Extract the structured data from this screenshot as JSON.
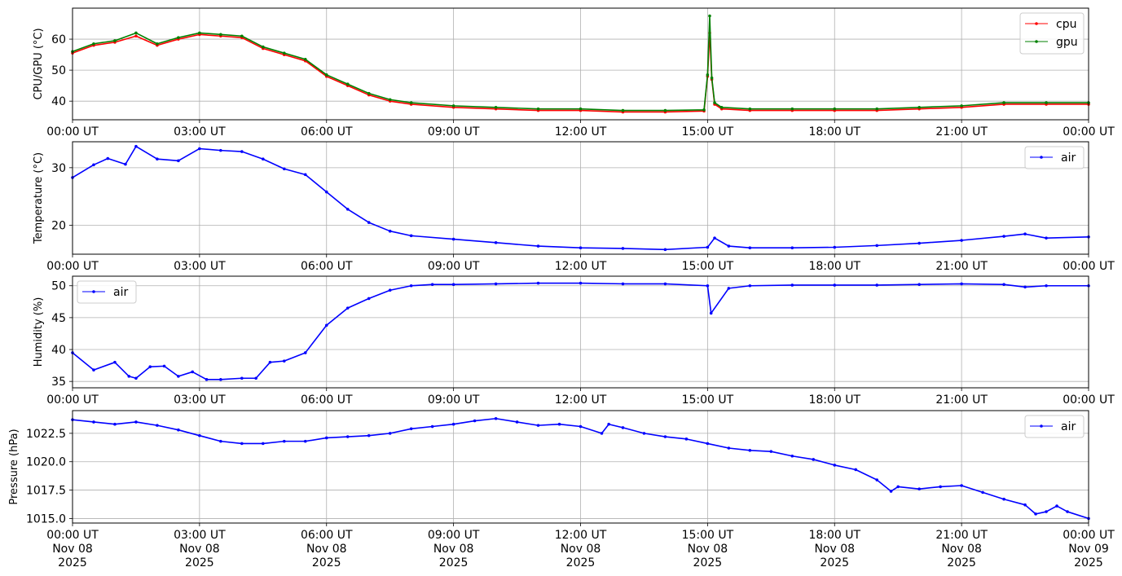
{
  "chart_data": [
    {
      "type": "line",
      "ylabel": "CPU/GPU (°C)",
      "ylim": [
        34,
        70
      ],
      "yticks": [
        40,
        50,
        60
      ],
      "x_ticks": [
        "00:00 UT",
        "03:00 UT",
        "06:00 UT",
        "09:00 UT",
        "12:00 UT",
        "15:00 UT",
        "18:00 UT",
        "21:00 UT",
        "00:00 UT"
      ],
      "x": [
        "00:00",
        "00:30",
        "01:00",
        "01:30",
        "02:00",
        "02:30",
        "03:00",
        "03:30",
        "04:00",
        "04:30",
        "05:00",
        "05:30",
        "06:00",
        "06:30",
        "07:00",
        "07:30",
        "08:00",
        "09:00",
        "10:00",
        "11:00",
        "12:00",
        "13:00",
        "14:00",
        "14:55",
        "15:00",
        "15:03",
        "15:06",
        "15:10",
        "15:20",
        "16:00",
        "17:00",
        "18:00",
        "19:00",
        "20:00",
        "21:00",
        "22:00",
        "23:00",
        "24:00"
      ],
      "series": [
        {
          "name": "cpu",
          "color": "#ff0000",
          "values": [
            55.5,
            58,
            59,
            61,
            58,
            60,
            61.5,
            61,
            60.5,
            57,
            55,
            53,
            48,
            45,
            42,
            40,
            39,
            38,
            37.5,
            37,
            37,
            36.5,
            36.5,
            36.8,
            48,
            62,
            47,
            39,
            37.5,
            37,
            37,
            37,
            37,
            37.5,
            38,
            39,
            39,
            39
          ]
        },
        {
          "name": "gpu",
          "color": "#008000",
          "values": [
            56,
            58.5,
            59.5,
            62,
            58.5,
            60.5,
            62,
            61.5,
            61,
            57.5,
            55.5,
            53.5,
            48.5,
            45.5,
            42.5,
            40.5,
            39.5,
            38.5,
            38,
            37.5,
            37.5,
            37,
            37,
            37.2,
            48.5,
            67.5,
            47.5,
            39.5,
            38,
            37.5,
            37.5,
            37.5,
            37.5,
            38,
            38.5,
            39.5,
            39.5,
            39.5
          ]
        }
      ],
      "legend": "top-right",
      "grid": true
    },
    {
      "type": "line",
      "ylabel": "Temperature (°C)",
      "ylim": [
        15,
        34.5
      ],
      "yticks": [
        20,
        30
      ],
      "x_ticks": [
        "00:00 UT",
        "03:00 UT",
        "06:00 UT",
        "09:00 UT",
        "12:00 UT",
        "15:00 UT",
        "18:00 UT",
        "21:00 UT",
        "00:00 UT"
      ],
      "x": [
        "00:00",
        "00:30",
        "00:50",
        "01:15",
        "01:30",
        "02:00",
        "02:30",
        "03:00",
        "03:30",
        "04:00",
        "04:30",
        "05:00",
        "05:30",
        "06:00",
        "06:30",
        "07:00",
        "07:30",
        "08:00",
        "09:00",
        "10:00",
        "11:00",
        "12:00",
        "13:00",
        "14:00",
        "15:00",
        "15:10",
        "15:30",
        "16:00",
        "17:00",
        "18:00",
        "19:00",
        "20:00",
        "21:00",
        "22:00",
        "22:30",
        "23:00",
        "24:00"
      ],
      "series": [
        {
          "name": "air",
          "color": "#0000ff",
          "values": [
            28.3,
            30.5,
            31.6,
            30.6,
            33.7,
            31.5,
            31.2,
            33.3,
            33.0,
            32.8,
            31.5,
            29.8,
            28.8,
            25.8,
            22.8,
            20.5,
            19.0,
            18.2,
            17.6,
            17.0,
            16.4,
            16.1,
            16.0,
            15.8,
            16.2,
            17.8,
            16.4,
            16.1,
            16.1,
            16.2,
            16.5,
            16.9,
            17.4,
            18.1,
            18.5,
            17.8,
            18.0
          ]
        }
      ],
      "legend": "top-right",
      "grid": true
    },
    {
      "type": "line",
      "ylabel": "Humidity (%)",
      "ylim": [
        34,
        51.5
      ],
      "yticks": [
        35,
        40,
        45,
        50
      ],
      "x_ticks": [
        "00:00 UT",
        "03:00 UT",
        "06:00 UT",
        "09:00 UT",
        "12:00 UT",
        "15:00 UT",
        "18:00 UT",
        "21:00 UT",
        "00:00 UT"
      ],
      "x": [
        "00:00",
        "00:30",
        "01:00",
        "01:20",
        "01:30",
        "01:50",
        "02:10",
        "02:30",
        "02:50",
        "03:10",
        "03:30",
        "04:00",
        "04:20",
        "04:40",
        "05:00",
        "05:30",
        "06:00",
        "06:30",
        "07:00",
        "07:30",
        "08:00",
        "08:30",
        "09:00",
        "10:00",
        "11:00",
        "12:00",
        "13:00",
        "14:00",
        "15:00",
        "15:05",
        "15:30",
        "16:00",
        "17:00",
        "18:00",
        "19:00",
        "20:00",
        "21:00",
        "22:00",
        "22:30",
        "23:00",
        "24:00"
      ],
      "series": [
        {
          "name": "air",
          "color": "#0000ff",
          "values": [
            39.5,
            36.8,
            38.0,
            35.8,
            35.5,
            37.3,
            37.4,
            35.8,
            36.5,
            35.3,
            35.3,
            35.5,
            35.5,
            38.0,
            38.2,
            39.5,
            43.8,
            46.5,
            48.0,
            49.3,
            50.0,
            50.2,
            50.2,
            50.3,
            50.4,
            50.4,
            50.3,
            50.3,
            50.0,
            45.7,
            49.6,
            50.0,
            50.1,
            50.1,
            50.1,
            50.2,
            50.3,
            50.2,
            49.8,
            50.0,
            50.0
          ]
        }
      ],
      "legend": "top-left",
      "grid": true
    },
    {
      "type": "line",
      "ylabel": "Pressure (hPa)",
      "ylim": [
        1014.6,
        1024.5
      ],
      "yticks": [
        1015.0,
        1017.5,
        1020.0,
        1022.5
      ],
      "yticklabels": [
        "1015.0",
        "1017.5",
        "1020.0",
        "1022.5"
      ],
      "x_ticks": [
        "00:00 UT\nNov 08\n2025",
        "03:00 UT\nNov 08\n2025",
        "06:00 UT\nNov 08\n2025",
        "09:00 UT\nNov 08\n2025",
        "12:00 UT\nNov 08\n2025",
        "15:00 UT\nNov 08\n2025",
        "18:00 UT\nNov 08\n2025",
        "21:00 UT\nNov 08\n2025",
        "00:00 UT\nNov 09\n2025"
      ],
      "x": [
        "00:00",
        "00:30",
        "01:00",
        "01:30",
        "02:00",
        "02:30",
        "03:00",
        "03:30",
        "04:00",
        "04:30",
        "05:00",
        "05:30",
        "06:00",
        "06:30",
        "07:00",
        "07:30",
        "08:00",
        "08:30",
        "09:00",
        "09:30",
        "10:00",
        "10:30",
        "11:00",
        "11:30",
        "12:00",
        "12:30",
        "12:40",
        "13:00",
        "13:30",
        "14:00",
        "14:30",
        "15:00",
        "15:30",
        "16:00",
        "16:30",
        "17:00",
        "17:30",
        "18:00",
        "18:30",
        "19:00",
        "19:20",
        "19:30",
        "20:00",
        "20:30",
        "21:00",
        "21:30",
        "22:00",
        "22:30",
        "22:45",
        "23:00",
        "23:15",
        "23:30",
        "24:00"
      ],
      "series": [
        {
          "name": "air",
          "color": "#0000ff",
          "values": [
            1023.7,
            1023.5,
            1023.3,
            1023.5,
            1023.2,
            1022.8,
            1022.3,
            1021.8,
            1021.6,
            1021.6,
            1021.8,
            1021.8,
            1022.1,
            1022.2,
            1022.3,
            1022.5,
            1022.9,
            1023.1,
            1023.3,
            1023.6,
            1023.8,
            1023.5,
            1023.2,
            1023.3,
            1023.1,
            1022.5,
            1023.3,
            1023.0,
            1022.5,
            1022.2,
            1022.0,
            1021.6,
            1021.2,
            1021.0,
            1020.9,
            1020.5,
            1020.2,
            1019.7,
            1019.3,
            1018.4,
            1017.4,
            1017.8,
            1017.6,
            1017.8,
            1017.9,
            1017.3,
            1016.7,
            1016.2,
            1015.4,
            1015.6,
            1016.1,
            1015.6,
            1015.0
          ]
        }
      ],
      "legend": "top-right",
      "grid": true
    }
  ]
}
